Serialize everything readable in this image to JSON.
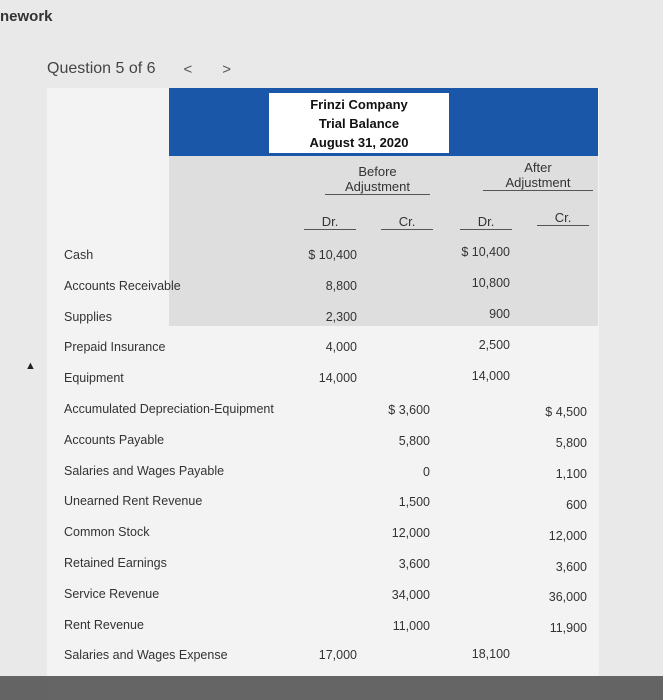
{
  "page": {
    "top_title": "nework",
    "question_label": "Question 5 of 6",
    "prev_icon": "<",
    "next_icon": ">"
  },
  "table": {
    "company": "Frinzi Company",
    "report": "Trial Balance",
    "date": "August 31, 2020",
    "before_label_1": "Before",
    "before_label_2": "Adjustment",
    "after_label_1": "After",
    "after_label_2": "Adjustment",
    "dr": "Dr.",
    "cr": "Cr.",
    "rows": [
      {
        "label": "Cash",
        "b_dr": "$ 10,400",
        "b_cr": "",
        "a_dr": "$ 10,400",
        "a_cr": ""
      },
      {
        "label": "Accounts Receivable",
        "b_dr": "8,800",
        "b_cr": "",
        "a_dr": "10,800",
        "a_cr": ""
      },
      {
        "label": "Supplies",
        "b_dr": "2,300",
        "b_cr": "",
        "a_dr": "900",
        "a_cr": ""
      },
      {
        "label": "Prepaid Insurance",
        "b_dr": "4,000",
        "b_cr": "",
        "a_dr": "2,500",
        "a_cr": ""
      },
      {
        "label": "Equipment",
        "b_dr": "14,000",
        "b_cr": "",
        "a_dr": "14,000",
        "a_cr": ""
      },
      {
        "label": "Accumulated Depreciation-Equipment",
        "b_dr": "",
        "b_cr": "$ 3,600",
        "a_dr": "",
        "a_cr": "$ 4,500"
      },
      {
        "label": "Accounts Payable",
        "b_dr": "",
        "b_cr": "5,800",
        "a_dr": "",
        "a_cr": "5,800"
      },
      {
        "label": "Salaries and Wages Payable",
        "b_dr": "",
        "b_cr": "0",
        "a_dr": "",
        "a_cr": "1,100"
      },
      {
        "label": "Unearned Rent Revenue",
        "b_dr": "",
        "b_cr": "1,500",
        "a_dr": "",
        "a_cr": "600"
      },
      {
        "label": "Common Stock",
        "b_dr": "",
        "b_cr": "12,000",
        "a_dr": "",
        "a_cr": "12,000"
      },
      {
        "label": "Retained Earnings",
        "b_dr": "",
        "b_cr": "3,600",
        "a_dr": "",
        "a_cr": "3,600"
      },
      {
        "label": "Service Revenue",
        "b_dr": "",
        "b_cr": "34,000",
        "a_dr": "",
        "a_cr": "36,000"
      },
      {
        "label": "Rent Revenue",
        "b_dr": "",
        "b_cr": "11,000",
        "a_dr": "",
        "a_cr": "11,900"
      },
      {
        "label": "Salaries and Wages Expense",
        "b_dr": "17,000",
        "b_cr": "",
        "a_dr": "18,100",
        "a_cr": ""
      }
    ]
  }
}
